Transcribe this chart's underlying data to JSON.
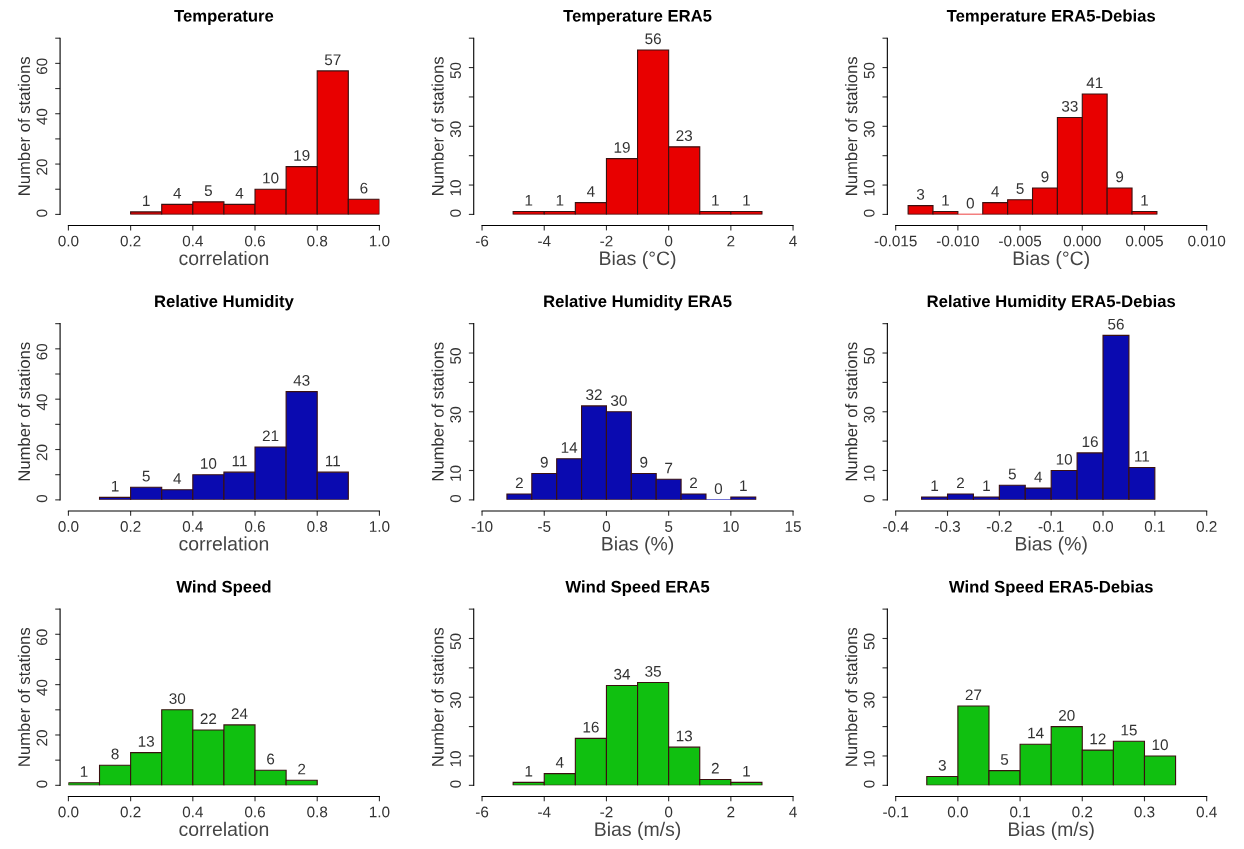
{
  "chart_data": [
    {
      "type": "histogram",
      "title": "Temperature",
      "xlabel": "correlation",
      "ylabel": "Number of stations",
      "color": "#e80000",
      "data_labels": true,
      "grid": false,
      "bins": [
        0.2,
        0.3,
        0.4,
        0.5,
        0.6,
        0.7,
        0.8,
        0.9,
        1.0
      ],
      "values": [
        1,
        4,
        5,
        4,
        10,
        19,
        57,
        6
      ],
      "xlim": [
        0.0,
        1.0
      ],
      "xticks": [
        {
          "value": 0.0,
          "label": "0.0"
        },
        {
          "value": 0.2,
          "label": "0.2"
        },
        {
          "value": 0.4,
          "label": "0.4"
        },
        {
          "value": 0.6,
          "label": "0.6"
        },
        {
          "value": 0.8,
          "label": "0.8"
        },
        {
          "value": 1.0,
          "label": "1.0"
        }
      ],
      "ylim": [
        0,
        70
      ],
      "yticks": [
        0,
        {
          "value": 10,
          "label": null
        },
        20,
        {
          "value": 30,
          "label": null
        },
        40,
        {
          "value": 50,
          "label": null
        },
        60,
        {
          "value": 70,
          "label": null
        }
      ]
    },
    {
      "type": "histogram",
      "title": "Temperature ERA5",
      "xlabel": "Bias (°C)",
      "ylabel": "Number of stations",
      "color": "#e80000",
      "data_labels": true,
      "grid": false,
      "bins": [
        -5,
        -4,
        -3,
        -2,
        -1,
        0,
        1,
        2,
        3
      ],
      "values": [
        1,
        1,
        4,
        19,
        56,
        23,
        1,
        1
      ],
      "xlim": [
        -6,
        4
      ],
      "xticks": [
        -6,
        -4,
        -2,
        0,
        2,
        4
      ],
      "ylim": [
        0,
        60
      ],
      "yticks": [
        0,
        10,
        {
          "value": 20,
          "label": null
        },
        30,
        {
          "value": 40,
          "label": null
        },
        50,
        {
          "value": 60,
          "label": null
        }
      ]
    },
    {
      "type": "histogram",
      "title": "Temperature ERA5-Debias",
      "xlabel": "Bias (°C)",
      "ylabel": "Number of stations",
      "color": "#e80000",
      "data_labels": true,
      "grid": false,
      "bins": [
        -0.014,
        -0.012,
        -0.01,
        -0.008,
        -0.006,
        -0.004,
        -0.002,
        0.0,
        0.002,
        0.004,
        0.006
      ],
      "values": [
        3,
        1,
        0,
        4,
        5,
        9,
        33,
        41,
        9,
        1
      ],
      "xlim": [
        -0.015,
        0.01
      ],
      "xticks": [
        {
          "value": -0.015,
          "label": "-0.015"
        },
        {
          "value": -0.01,
          "label": "-0.010"
        },
        {
          "value": -0.005,
          "label": "-0.005"
        },
        {
          "value": 0.0,
          "label": "0.000"
        },
        {
          "value": 0.005,
          "label": "0.005"
        },
        {
          "value": 0.01,
          "label": "0.010"
        }
      ],
      "ylim": [
        0,
        60
      ],
      "yticks": [
        0,
        10,
        {
          "value": 20,
          "label": null
        },
        30,
        {
          "value": 40,
          "label": null
        },
        50,
        {
          "value": 60,
          "label": null
        }
      ]
    },
    {
      "type": "histogram",
      "title": "Relative Humidity",
      "xlabel": "correlation",
      "ylabel": "Number of stations",
      "color": "#0a0ab0",
      "data_labels": true,
      "grid": false,
      "bins": [
        0.1,
        0.2,
        0.3,
        0.4,
        0.5,
        0.6,
        0.7,
        0.8,
        0.9
      ],
      "values": [
        1,
        5,
        4,
        10,
        11,
        21,
        43,
        11
      ],
      "xlim": [
        0.0,
        1.0
      ],
      "xticks": [
        {
          "value": 0.0,
          "label": "0.0"
        },
        {
          "value": 0.2,
          "label": "0.2"
        },
        {
          "value": 0.4,
          "label": "0.4"
        },
        {
          "value": 0.6,
          "label": "0.6"
        },
        {
          "value": 0.8,
          "label": "0.8"
        },
        {
          "value": 1.0,
          "label": "1.0"
        }
      ],
      "ylim": [
        0,
        70
      ],
      "yticks": [
        0,
        {
          "value": 10,
          "label": null
        },
        20,
        {
          "value": 30,
          "label": null
        },
        40,
        {
          "value": 50,
          "label": null
        },
        60,
        {
          "value": 70,
          "label": null
        }
      ]
    },
    {
      "type": "histogram",
      "title": "Relative Humidity ERA5",
      "xlabel": "Bias (%)",
      "ylabel": "Number of stations",
      "color": "#0a0ab0",
      "data_labels": true,
      "grid": false,
      "bins": [
        -8,
        -6,
        -4,
        -2,
        0,
        2,
        4,
        6,
        8,
        10,
        12
      ],
      "values": [
        2,
        9,
        14,
        32,
        30,
        9,
        7,
        2,
        0,
        1
      ],
      "xlim": [
        -10,
        15
      ],
      "xticks": [
        -10,
        -5,
        0,
        5,
        10,
        15
      ],
      "ylim": [
        0,
        60
      ],
      "yticks": [
        0,
        10,
        {
          "value": 20,
          "label": null
        },
        30,
        {
          "value": 40,
          "label": null
        },
        50,
        {
          "value": 60,
          "label": null
        }
      ]
    },
    {
      "type": "histogram",
      "title": "Relative Humidity ERA5-Debias",
      "xlabel": "Bias (%)",
      "ylabel": "Number of stations",
      "color": "#0a0ab0",
      "data_labels": true,
      "grid": false,
      "bins": [
        -0.35,
        -0.3,
        -0.25,
        -0.2,
        -0.15,
        -0.1,
        -0.05,
        0.0,
        0.05,
        0.1
      ],
      "values": [
        1,
        2,
        1,
        5,
        4,
        10,
        16,
        56,
        11
      ],
      "xlim": [
        -0.4,
        0.2
      ],
      "xticks": [
        {
          "value": -0.4,
          "label": "-0.4"
        },
        {
          "value": -0.3,
          "label": "-0.3"
        },
        {
          "value": -0.2,
          "label": "-0.2"
        },
        {
          "value": -0.1,
          "label": "-0.1"
        },
        {
          "value": 0.0,
          "label": "0.0"
        },
        {
          "value": 0.1,
          "label": "0.1"
        },
        {
          "value": 0.2,
          "label": "0.2"
        }
      ],
      "ylim": [
        0,
        60
      ],
      "yticks": [
        0,
        10,
        {
          "value": 20,
          "label": null
        },
        30,
        {
          "value": 40,
          "label": null
        },
        50,
        {
          "value": 60,
          "label": null
        }
      ]
    },
    {
      "type": "histogram",
      "title": "Wind Speed",
      "xlabel": "correlation",
      "ylabel": "Number of stations",
      "color": "#10c010",
      "data_labels": true,
      "grid": false,
      "bins": [
        0.0,
        0.1,
        0.2,
        0.3,
        0.4,
        0.5,
        0.6,
        0.7,
        0.8
      ],
      "values": [
        1,
        8,
        13,
        30,
        22,
        24,
        6,
        2
      ],
      "xlim": [
        0.0,
        1.0
      ],
      "xticks": [
        {
          "value": 0.0,
          "label": "0.0"
        },
        {
          "value": 0.2,
          "label": "0.2"
        },
        {
          "value": 0.4,
          "label": "0.4"
        },
        {
          "value": 0.6,
          "label": "0.6"
        },
        {
          "value": 0.8,
          "label": "0.8"
        },
        {
          "value": 1.0,
          "label": "1.0"
        }
      ],
      "ylim": [
        0,
        70
      ],
      "yticks": [
        0,
        {
          "value": 10,
          "label": null
        },
        20,
        {
          "value": 30,
          "label": null
        },
        40,
        {
          "value": 50,
          "label": null
        },
        60,
        {
          "value": 70,
          "label": null
        }
      ]
    },
    {
      "type": "histogram",
      "title": "Wind Speed ERA5",
      "xlabel": "Bias (m/s)",
      "ylabel": "Number of stations",
      "color": "#10c010",
      "data_labels": true,
      "grid": false,
      "bins": [
        -5,
        -4,
        -3,
        -2,
        -1,
        0,
        1,
        2,
        3
      ],
      "values": [
        1,
        4,
        16,
        34,
        35,
        13,
        2,
        1
      ],
      "xlim": [
        -6,
        4
      ],
      "xticks": [
        -6,
        -4,
        -2,
        0,
        2,
        4
      ],
      "ylim": [
        0,
        60
      ],
      "yticks": [
        0,
        10,
        {
          "value": 20,
          "label": null
        },
        30,
        {
          "value": 40,
          "label": null
        },
        50,
        {
          "value": 60,
          "label": null
        }
      ]
    },
    {
      "type": "histogram",
      "title": "Wind Speed ERA5-Debias",
      "xlabel": "Bias (m/s)",
      "ylabel": "Number of stations",
      "color": "#10c010",
      "data_labels": true,
      "grid": false,
      "bins": [
        -0.05,
        0.0,
        0.05,
        0.1,
        0.15,
        0.2,
        0.25,
        0.3,
        0.35
      ],
      "values": [
        3,
        27,
        5,
        14,
        20,
        12,
        15,
        10
      ],
      "xlim": [
        -0.1,
        0.4
      ],
      "xticks": [
        {
          "value": -0.1,
          "label": "-0.1"
        },
        {
          "value": 0.0,
          "label": "0.0"
        },
        {
          "value": 0.1,
          "label": "0.1"
        },
        {
          "value": 0.2,
          "label": "0.2"
        },
        {
          "value": 0.3,
          "label": "0.3"
        },
        {
          "value": 0.4,
          "label": "0.4"
        }
      ],
      "ylim": [
        0,
        60
      ],
      "yticks": [
        0,
        10,
        {
          "value": 20,
          "label": null
        },
        30,
        {
          "value": 40,
          "label": null
        },
        50,
        {
          "value": 60,
          "label": null
        }
      ]
    }
  ]
}
